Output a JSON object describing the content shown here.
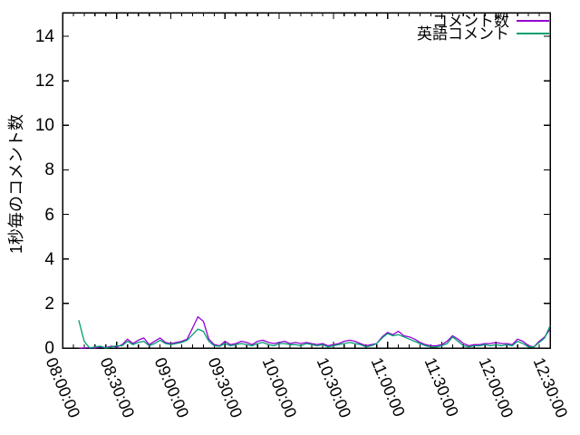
{
  "chart": {
    "y_axis_label": "1秒毎のコメント数",
    "axis_color": "#000000",
    "background_color": "#ffffff"
  },
  "chart_data": {
    "type": "line",
    "title": "",
    "xlabel": "",
    "ylabel": "1秒毎のコメント数",
    "grid": false,
    "legend_position": "top-right-inside",
    "ylim": [
      0,
      15.06
    ],
    "y_tick_interval": 2,
    "y_tick_labels": [
      "0",
      "2",
      "4",
      "6",
      "8",
      "10",
      "12",
      "14"
    ],
    "x_minutes_range": [
      0,
      270
    ],
    "x_tick_interval_minutes": 30,
    "x_minor_tick_interval_minutes": 6,
    "x_tick_labels": [
      "08:00:00",
      "08:30:00",
      "09:00:00",
      "09:30:00",
      "10:00:00",
      "10:30:00",
      "11:00:00",
      "11:30:00",
      "12:00:00",
      "12:30:00"
    ],
    "x_minutes": [
      9,
      12,
      15,
      18,
      21,
      24,
      27,
      30,
      33,
      36,
      39,
      42,
      45,
      48,
      51,
      54,
      57,
      60,
      63,
      66,
      69,
      72,
      75,
      78,
      81,
      84,
      87,
      90,
      93,
      96,
      99,
      102,
      105,
      108,
      111,
      114,
      117,
      120,
      123,
      126,
      129,
      132,
      135,
      138,
      141,
      144,
      147,
      150,
      153,
      156,
      159,
      162,
      165,
      168,
      171,
      174,
      177,
      180,
      183,
      186,
      189,
      192,
      195,
      198,
      201,
      204,
      207,
      210,
      213,
      216,
      219,
      222,
      225,
      228,
      231,
      234,
      237,
      240,
      243,
      246,
      249,
      252,
      255,
      258,
      261,
      264,
      267,
      270
    ],
    "series": [
      {
        "name": "コメント数",
        "color": "#9400d3",
        "values": [
          0,
          0,
          0.02,
          0,
          0.05,
          0.02,
          0.08,
          0.05,
          0.15,
          0.4,
          0.2,
          0.35,
          0.45,
          0.15,
          0.3,
          0.45,
          0.25,
          0.2,
          0.25,
          0.3,
          0.4,
          0.9,
          1.4,
          1.2,
          0.4,
          0.15,
          0.1,
          0.3,
          0.15,
          0.2,
          0.3,
          0.25,
          0.15,
          0.3,
          0.35,
          0.25,
          0.2,
          0.25,
          0.3,
          0.2,
          0.25,
          0.2,
          0.25,
          0.2,
          0.15,
          0.2,
          0.1,
          0.15,
          0.2,
          0.3,
          0.35,
          0.3,
          0.2,
          0.1,
          0.15,
          0.2,
          0.5,
          0.7,
          0.6,
          0.75,
          0.55,
          0.5,
          0.4,
          0.25,
          0.15,
          0.1,
          0.1,
          0.15,
          0.3,
          0.55,
          0.4,
          0.2,
          0.1,
          0.15,
          0.15,
          0.2,
          0.2,
          0.25,
          0.2,
          0.2,
          0.15,
          0.4,
          0.3,
          0.1,
          0.05,
          0.3,
          0.5,
          0.85
        ]
      },
      {
        "name": "英語コメント",
        "color": "#009e73",
        "values": [
          1.25,
          0.3,
          0,
          0.05,
          0.08,
          0,
          0.05,
          0.1,
          0.1,
          0.3,
          0.15,
          0.25,
          0.3,
          0.1,
          0.2,
          0.35,
          0.2,
          0.15,
          0.2,
          0.25,
          0.35,
          0.6,
          0.85,
          0.75,
          0.3,
          0.1,
          0.08,
          0.2,
          0.1,
          0.15,
          0.2,
          0.15,
          0.1,
          0.2,
          0.25,
          0.15,
          0.1,
          0.2,
          0.2,
          0.15,
          0.15,
          0.1,
          0.2,
          0.15,
          0.1,
          0.15,
          0.05,
          0.1,
          0.15,
          0.2,
          0.25,
          0.2,
          0.15,
          0.05,
          0.1,
          0.2,
          0.45,
          0.65,
          0.55,
          0.6,
          0.5,
          0.4,
          0.3,
          0.2,
          0.1,
          0.05,
          0.05,
          0.1,
          0.2,
          0.5,
          0.3,
          0.1,
          0.05,
          0.1,
          0.1,
          0.15,
          0.1,
          0.15,
          0.1,
          0.15,
          0.1,
          0.3,
          0.2,
          0.05,
          0.05,
          0.25,
          0.45,
          1.0
        ]
      }
    ]
  }
}
